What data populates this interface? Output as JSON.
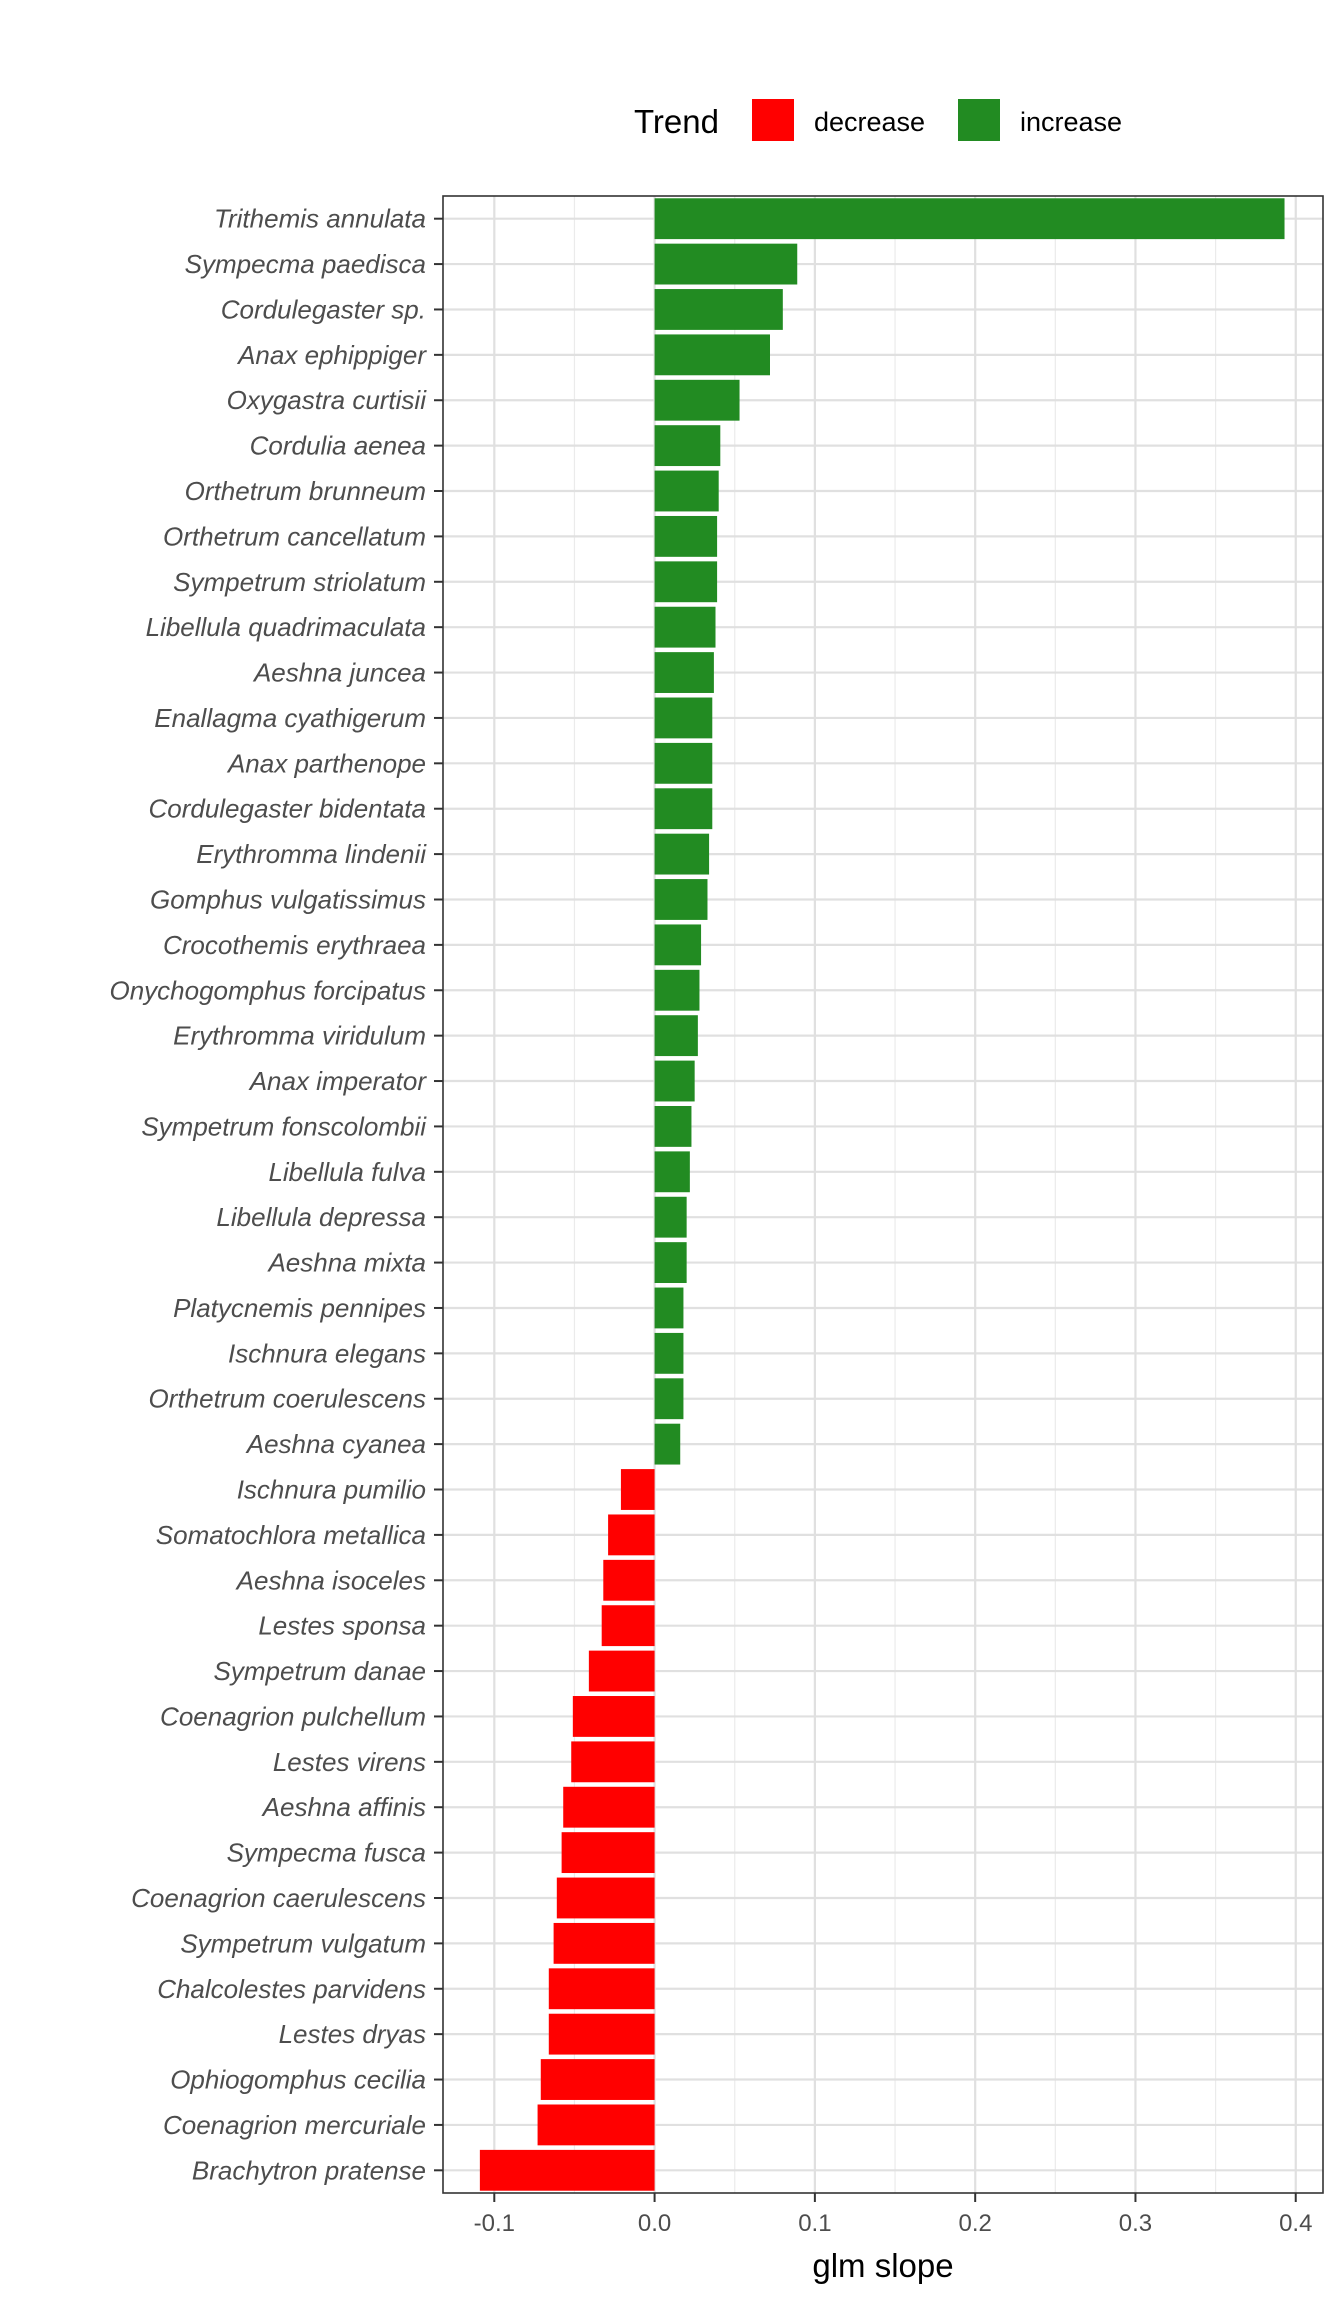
{
  "chart_data": {
    "type": "bar",
    "orientation": "horizontal",
    "xlabel": "glm slope",
    "ylabel": "",
    "xlim": [
      -0.132,
      0.417
    ],
    "x_ticks": [
      -0.1,
      0.0,
      0.1,
      0.2,
      0.3,
      0.4
    ],
    "x_tick_labels": [
      "-0.1",
      "0.0",
      "0.1",
      "0.2",
      "0.3",
      "0.4"
    ],
    "grid": true,
    "legend": {
      "title": "Trend",
      "position": "top",
      "entries": [
        {
          "label": "decrease",
          "color": "#ff0000"
        },
        {
          "label": "increase",
          "color": "#228b22"
        }
      ]
    },
    "categories": [
      "Trithemis annulata",
      "Sympecma paedisca",
      "Cordulegaster sp.",
      "Anax ephippiger",
      "Oxygastra curtisii",
      "Cordulia aenea",
      "Orthetrum brunneum",
      "Orthetrum cancellatum",
      "Sympetrum striolatum",
      "Libellula quadrimaculata",
      "Aeshna juncea",
      "Enallagma cyathigerum",
      "Anax parthenope",
      "Cordulegaster bidentata",
      "Erythromma lindenii",
      "Gomphus vulgatissimus",
      "Crocothemis erythraea",
      "Onychogomphus forcipatus",
      "Erythromma viridulum",
      "Anax imperator",
      "Sympetrum fonscolombii",
      "Libellula fulva",
      "Libellula depressa",
      "Aeshna mixta",
      "Platycnemis pennipes",
      "Ischnura elegans",
      "Orthetrum coerulescens",
      "Aeshna cyanea",
      "Ischnura pumilio",
      "Somatochlora metallica",
      "Aeshna isoceles",
      "Lestes sponsa",
      "Sympetrum danae",
      "Coenagrion pulchellum",
      "Lestes virens",
      "Aeshna affinis",
      "Sympecma fusca",
      "Coenagrion caerulescens",
      "Sympetrum vulgatum",
      "Chalcolestes parvidens",
      "Lestes dryas",
      "Ophiogomphus cecilia",
      "Coenagrion mercuriale",
      "Brachytron pratense"
    ],
    "values": [
      0.393,
      0.089,
      0.08,
      0.072,
      0.053,
      0.041,
      0.04,
      0.039,
      0.039,
      0.038,
      0.037,
      0.036,
      0.036,
      0.036,
      0.034,
      0.033,
      0.029,
      0.028,
      0.027,
      0.025,
      0.023,
      0.022,
      0.02,
      0.02,
      0.018,
      0.018,
      0.018,
      0.016,
      -0.021,
      -0.029,
      -0.032,
      -0.033,
      -0.041,
      -0.051,
      -0.052,
      -0.057,
      -0.058,
      -0.061,
      -0.063,
      -0.066,
      -0.066,
      -0.071,
      -0.073,
      -0.109
    ],
    "trend": [
      "increase",
      "increase",
      "increase",
      "increase",
      "increase",
      "increase",
      "increase",
      "increase",
      "increase",
      "increase",
      "increase",
      "increase",
      "increase",
      "increase",
      "increase",
      "increase",
      "increase",
      "increase",
      "increase",
      "increase",
      "increase",
      "increase",
      "increase",
      "increase",
      "increase",
      "increase",
      "increase",
      "increase",
      "decrease",
      "decrease",
      "decrease",
      "decrease",
      "decrease",
      "decrease",
      "decrease",
      "decrease",
      "decrease",
      "decrease",
      "decrease",
      "decrease",
      "decrease",
      "decrease",
      "decrease",
      "decrease"
    ]
  }
}
